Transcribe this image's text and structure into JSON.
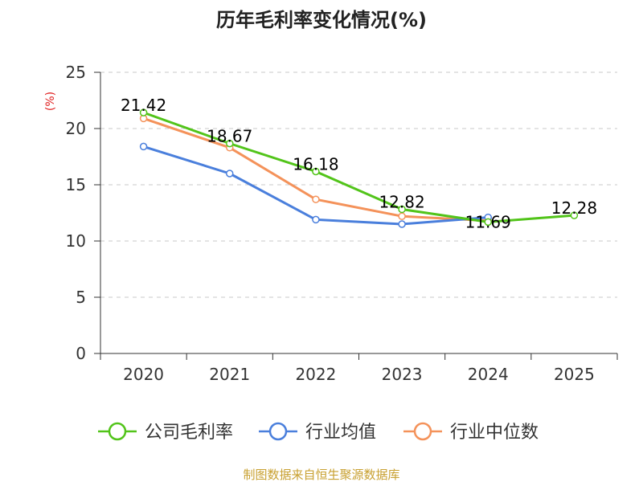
{
  "chart_data": {
    "type": "line",
    "title": "历年毛利率变化情况(%)",
    "ylabel": "(%)",
    "xlabel": "",
    "categories": [
      "2020",
      "2021",
      "2022",
      "2023",
      "2024",
      "2025"
    ],
    "ylim": [
      0,
      25
    ],
    "yticks": [
      0,
      5,
      10,
      15,
      20,
      25
    ],
    "grid": true,
    "legend_position": "bottom",
    "series": [
      {
        "name": "公司毛利率",
        "color": "#52c41a",
        "values": [
          21.42,
          18.67,
          16.18,
          12.82,
          11.69,
          12.28
        ],
        "labels": [
          "21.42",
          "18.67",
          "16.18",
          "12.82",
          "11.69",
          "12.28"
        ]
      },
      {
        "name": "行业均值",
        "color": "#4a7fdc",
        "values": [
          18.4,
          16.0,
          11.9,
          11.5,
          12.1,
          null
        ]
      },
      {
        "name": "行业中位数",
        "color": "#f4925a",
        "values": [
          20.9,
          18.3,
          13.7,
          12.2,
          11.8,
          null
        ]
      }
    ]
  },
  "footer": {
    "source": "制图数据来自恒生聚源数据库"
  }
}
